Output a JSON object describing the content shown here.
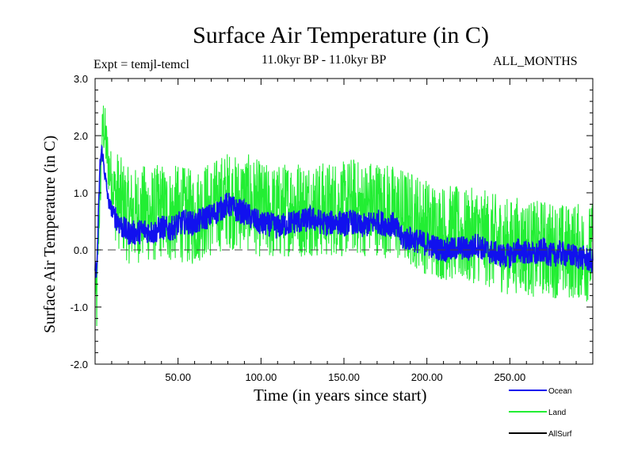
{
  "chart_data": {
    "type": "line",
    "title": "Surface Air Temperature (in C)",
    "expt_label": "Expt = temjl-temcl",
    "period_label": "11.0kyr BP - 11.0kyr BP",
    "months_label": "ALL_MONTHS",
    "xlabel": "Time (in years since start)",
    "ylabel": "Surface Air Temperature (in C)",
    "xlim": [
      0,
      300
    ],
    "ylim": [
      -2.0,
      3.0
    ],
    "xticks": [
      50,
      100,
      150,
      200,
      250
    ],
    "xtick_labels": [
      "50.00",
      "100.00",
      "150.00",
      "200.00",
      "250.00"
    ],
    "yticks": [
      3.0,
      2.0,
      1.0,
      0.0,
      -1.0,
      -2.0
    ],
    "ytick_labels": [
      "3.0",
      "2.0",
      "1.0",
      "0.0",
      "-1.0",
      "-2.0"
    ],
    "zero_line": 0.0,
    "series": [
      {
        "name": "Land",
        "color": "#22ee33",
        "x": [
          0,
          1,
          2,
          3,
          4,
          5,
          6,
          8,
          10,
          12,
          15,
          18,
          20,
          25,
          30,
          35,
          40,
          45,
          50,
          55,
          60,
          65,
          70,
          75,
          80,
          85,
          90,
          95,
          100,
          105,
          110,
          115,
          120,
          125,
          130,
          135,
          140,
          145,
          150,
          155,
          160,
          165,
          170,
          175,
          180,
          185,
          190,
          195,
          200,
          205,
          210,
          215,
          220,
          225,
          230,
          235,
          240,
          245,
          250,
          255,
          260,
          265,
          270,
          275,
          280,
          285,
          290,
          295,
          300
        ],
        "values": [
          -0.5,
          -1.0,
          0.3,
          1.0,
          1.8,
          2.2,
          2.0,
          1.5,
          1.2,
          1.0,
          0.8,
          0.7,
          0.6,
          0.6,
          0.65,
          0.6,
          0.7,
          0.6,
          0.65,
          0.6,
          0.55,
          0.7,
          0.7,
          0.8,
          0.9,
          0.8,
          0.85,
          0.8,
          0.7,
          0.65,
          0.65,
          0.7,
          0.8,
          0.7,
          0.75,
          0.7,
          0.7,
          0.75,
          0.7,
          0.8,
          0.7,
          0.75,
          0.75,
          0.7,
          0.65,
          0.6,
          0.55,
          0.5,
          0.4,
          0.35,
          0.3,
          0.3,
          0.25,
          0.2,
          0.3,
          0.2,
          0.15,
          0.1,
          0.05,
          0.1,
          0.05,
          0.0,
          0.05,
          0.0,
          0.0,
          -0.05,
          0.0,
          -0.1,
          0.0
        ]
      },
      {
        "name": "Ocean",
        "color": "#1111ee",
        "x": [
          0,
          1,
          2,
          3,
          4,
          5,
          6,
          8,
          10,
          12,
          15,
          18,
          20,
          25,
          30,
          35,
          40,
          45,
          50,
          55,
          60,
          65,
          70,
          75,
          80,
          85,
          90,
          95,
          100,
          105,
          110,
          115,
          120,
          125,
          130,
          135,
          140,
          145,
          150,
          155,
          160,
          165,
          170,
          175,
          180,
          185,
          190,
          195,
          200,
          205,
          210,
          215,
          220,
          225,
          230,
          235,
          240,
          245,
          250,
          255,
          260,
          265,
          270,
          275,
          280,
          285,
          290,
          295,
          300
        ],
        "values": [
          -0.3,
          -0.4,
          0.6,
          1.5,
          1.75,
          1.55,
          1.3,
          0.85,
          0.7,
          0.6,
          0.45,
          0.35,
          0.3,
          0.3,
          0.35,
          0.3,
          0.4,
          0.35,
          0.45,
          0.5,
          0.45,
          0.55,
          0.6,
          0.7,
          0.8,
          0.7,
          0.65,
          0.55,
          0.45,
          0.45,
          0.4,
          0.45,
          0.5,
          0.5,
          0.55,
          0.5,
          0.45,
          0.5,
          0.45,
          0.5,
          0.4,
          0.45,
          0.5,
          0.45,
          0.45,
          0.2,
          0.2,
          0.15,
          0.1,
          0.05,
          0.0,
          0.0,
          0.05,
          0.0,
          0.1,
          0.0,
          -0.05,
          -0.1,
          -0.1,
          0.0,
          -0.05,
          -0.1,
          0.0,
          -0.1,
          -0.05,
          -0.1,
          -0.1,
          -0.15,
          -0.2
        ]
      },
      {
        "name": "AllSurf",
        "color": "#000000",
        "x": [],
        "values": []
      }
    ],
    "legend": [
      "Ocean",
      "Land",
      "AllSurf"
    ],
    "legend_position": "bottom-right"
  }
}
